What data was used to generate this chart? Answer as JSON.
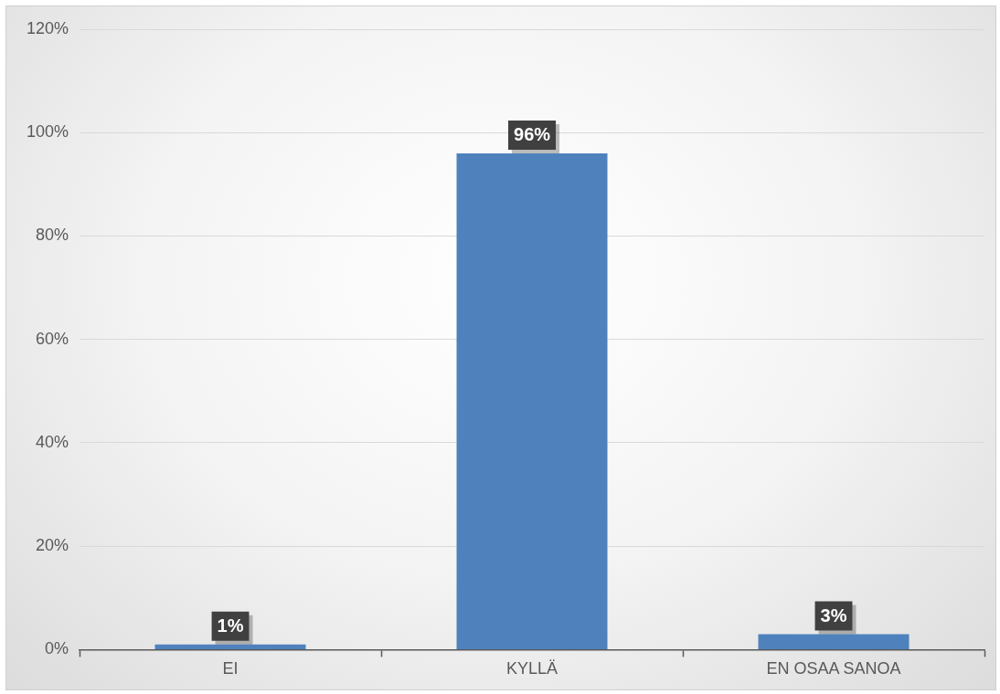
{
  "chart_data": {
    "type": "bar",
    "categories": [
      "EI",
      "KYLLÄ",
      "EN OSAA SANOA"
    ],
    "values": [
      1,
      96,
      3
    ],
    "color": "#4f81bd",
    "value_labels": [
      "1%",
      "96%",
      "3%"
    ],
    "ylim": [
      0,
      120
    ],
    "yticks": [
      {
        "value": 0,
        "label": "0%"
      },
      {
        "value": 20,
        "label": "20%"
      },
      {
        "value": 40,
        "label": "40%"
      },
      {
        "value": 60,
        "label": "60%"
      },
      {
        "value": 80,
        "label": "80%"
      },
      {
        "value": 100,
        "label": "100%"
      },
      {
        "value": 120,
        "label": "120%"
      }
    ],
    "grid": "y",
    "legend": false
  }
}
